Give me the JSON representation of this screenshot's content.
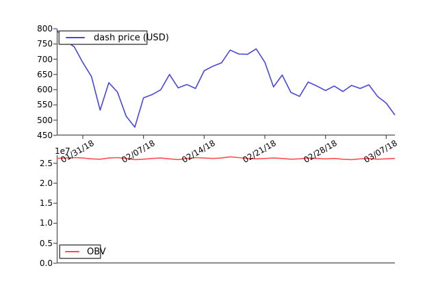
{
  "colors": {
    "background": "#ffffff",
    "spine": "#4d4d4d",
    "price_line": "#4545e0",
    "obv_line": "#ff4d4d",
    "text": "#000000"
  },
  "chart_data": [
    {
      "type": "line",
      "x": [
        "01/28/18",
        "01/29/18",
        "01/30/18",
        "01/31/18",
        "02/01/18",
        "02/02/18",
        "02/03/18",
        "02/04/18",
        "02/05/18",
        "02/06/18",
        "02/07/18",
        "02/08/18",
        "02/09/18",
        "02/10/18",
        "02/11/18",
        "02/12/18",
        "02/13/18",
        "02/14/18",
        "02/15/18",
        "02/16/18",
        "02/17/18",
        "02/18/18",
        "02/19/18",
        "02/20/18",
        "02/21/18",
        "02/22/18",
        "02/23/18",
        "02/24/18",
        "02/25/18",
        "02/26/18",
        "02/27/18",
        "02/28/18",
        "03/01/18",
        "03/02/18",
        "03/03/18",
        "03/04/18",
        "03/05/18",
        "03/06/18",
        "03/07/18",
        "03/08/18"
      ],
      "series": [
        {
          "name": "dash price (USD)",
          "color": "#4545e0",
          "values": [
            795,
            760,
            741,
            689,
            643,
            533,
            623,
            592,
            513,
            477,
            573,
            584,
            600,
            650,
            606,
            617,
            604,
            662,
            677,
            688,
            730,
            717,
            716,
            734,
            690,
            609,
            648,
            591,
            578,
            625,
            612,
            597,
            612,
            594,
            614,
            604,
            616,
            578,
            556,
            517
          ]
        }
      ],
      "ylim": [
        450,
        800
      ],
      "yticks": [
        {
          "value": 800,
          "label": "800"
        },
        {
          "value": 750,
          "label": "750"
        },
        {
          "value": 700,
          "label": "700"
        },
        {
          "value": 650,
          "label": "650"
        },
        {
          "value": 600,
          "label": "600"
        },
        {
          "value": 550,
          "label": "550"
        },
        {
          "value": 500,
          "label": "500"
        },
        {
          "value": 450,
          "label": "450"
        }
      ],
      "xticks": [
        {
          "index": 3,
          "label": "01/31/18"
        },
        {
          "index": 10,
          "label": "02/07/18"
        },
        {
          "index": 17,
          "label": "02/14/18"
        },
        {
          "index": 24,
          "label": "02/21/18"
        },
        {
          "index": 31,
          "label": "02/28/18"
        },
        {
          "index": 38,
          "label": "03/07/18"
        }
      ],
      "legend": {
        "position": "upper-left"
      },
      "grid": false
    },
    {
      "type": "line",
      "x": [
        "01/28/18",
        "01/29/18",
        "01/30/18",
        "01/31/18",
        "02/01/18",
        "02/02/18",
        "02/03/18",
        "02/04/18",
        "02/05/18",
        "02/06/18",
        "02/07/18",
        "02/08/18",
        "02/09/18",
        "02/10/18",
        "02/11/18",
        "02/12/18",
        "02/13/18",
        "02/14/18",
        "02/15/18",
        "02/16/18",
        "02/17/18",
        "02/18/18",
        "02/19/18",
        "02/20/18",
        "02/21/18",
        "02/22/18",
        "02/23/18",
        "02/24/18",
        "02/25/18",
        "02/26/18",
        "02/27/18",
        "02/28/18",
        "03/01/18",
        "03/02/18",
        "03/03/18",
        "03/04/18",
        "03/05/18",
        "03/06/18",
        "03/07/18",
        "03/08/18"
      ],
      "series": [
        {
          "name": "OBV",
          "color": "#ff4d4d",
          "values": [
            26200000,
            26300000,
            26400000,
            26300000,
            26100000,
            26000000,
            26300000,
            26400000,
            26200000,
            25900000,
            26000000,
            26200000,
            26300000,
            26100000,
            25900000,
            26200000,
            26400000,
            26300000,
            26200000,
            26300000,
            26600000,
            26400000,
            26200000,
            26100000,
            26200000,
            26300000,
            26200000,
            26000000,
            26100000,
            26300000,
            26200000,
            26100000,
            26200000,
            26000000,
            25900000,
            26100000,
            26200000,
            26000000,
            26100000,
            26200000
          ]
        }
      ],
      "ylim": [
        0,
        27000000
      ],
      "offset_label": "1e7",
      "yticks": [
        {
          "value": 25000000,
          "label": "2.5"
        },
        {
          "value": 20000000,
          "label": "2.0"
        },
        {
          "value": 15000000,
          "label": "1.5"
        },
        {
          "value": 10000000,
          "label": "1.0"
        },
        {
          "value": 5000000,
          "label": "0.5"
        },
        {
          "value": 0,
          "label": "0.0"
        }
      ],
      "xticks": [],
      "legend": {
        "position": "lower-left"
      },
      "grid": false
    }
  ]
}
